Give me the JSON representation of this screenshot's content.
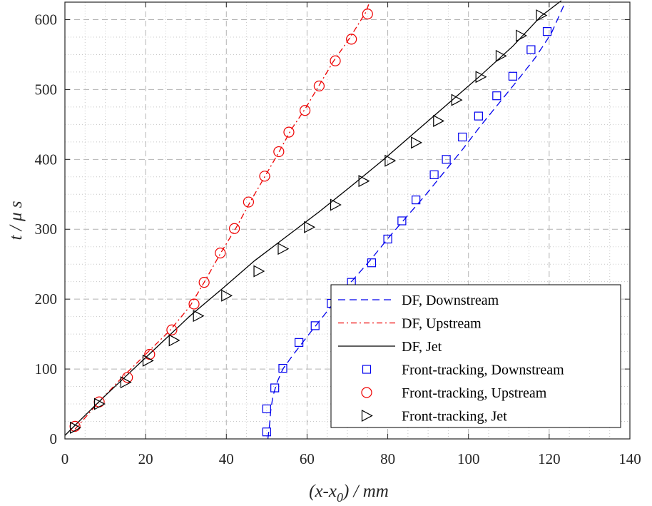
{
  "chart_data": {
    "type": "scatter",
    "xlabel": "(x-x0) / mm",
    "xlabel_main": "(x-x",
    "xlabel_sub": "0",
    "xlabel_tail": ") / mm",
    "ylabel": "t / μ s",
    "xlim": [
      0,
      140
    ],
    "ylim": [
      0,
      625
    ],
    "xticks": [
      0,
      20,
      40,
      60,
      80,
      100,
      120,
      140
    ],
    "yticks": [
      0,
      100,
      200,
      300,
      400,
      500,
      600
    ],
    "grid": true,
    "legend_position": "lower-right",
    "series": [
      {
        "name": "DF, Downstream",
        "kind": "line",
        "style": "dashed",
        "color": "#0000ee",
        "x": [
          50.3,
          50.5,
          50.7,
          51.0,
          51.5,
          52.5,
          54.0,
          56.5,
          60.5,
          66.0,
          71.0,
          76.0,
          80.5,
          85.0,
          89.5,
          94.0,
          98.5,
          103.0,
          107.5,
          112.0,
          116.5,
          120.5,
          124.0
        ],
        "y": [
          0,
          10,
          20,
          40,
          60,
          80,
          100,
          120,
          150,
          190,
          225,
          258,
          290,
          320,
          350,
          382,
          414,
          448,
          480,
          512,
          545,
          580,
          625
        ]
      },
      {
        "name": "DF, Upstream",
        "kind": "line",
        "style": "dashdot",
        "color": "#ee0000",
        "x": [
          2.5,
          8,
          14,
          20,
          26,
          31,
          34.5,
          38.5,
          42.5,
          46,
          49.5,
          53,
          56,
          59.5,
          63,
          66.5,
          70.5,
          74.5,
          75.5
        ],
        "y": [
          14,
          50,
          87,
          121,
          155,
          190,
          224,
          265,
          303,
          340,
          375,
          410,
          442,
          472,
          506,
          540,
          573,
          610,
          625
        ]
      },
      {
        "name": "DF, Jet",
        "kind": "line",
        "style": "solid",
        "color": "#000000",
        "x": [
          0,
          4,
          10,
          17,
          24,
          31,
          39,
          47,
          55,
          63,
          71,
          79,
          87,
          95,
          103,
          111,
          118,
          123
        ],
        "y": [
          5,
          28,
          62,
          100,
          138,
          176,
          215,
          255,
          290,
          325,
          362,
          400,
          440,
          480,
          520,
          562,
          605,
          627
        ]
      },
      {
        "name": "Front-tracking, Downstream",
        "kind": "marker",
        "marker": "square",
        "color": "#0000ee",
        "x": [
          50,
          50,
          52,
          54,
          58,
          62,
          66,
          71,
          76,
          80,
          83.5,
          87,
          91.5,
          94.5,
          98.5,
          102.5,
          107,
          111,
          115.5,
          119.5
        ],
        "y": [
          10,
          43,
          73,
          101,
          138,
          162,
          194,
          224,
          252,
          286,
          312,
          342,
          378,
          400,
          432,
          462,
          491,
          519,
          557,
          583
        ]
      },
      {
        "name": "Front-tracking, Upstream",
        "kind": "marker",
        "marker": "circle",
        "color": "#ee0000",
        "x": [
          2.5,
          8.5,
          15.5,
          21,
          26.5,
          32,
          34.5,
          38.5,
          42,
          45.5,
          49.5,
          53,
          55.5,
          59.5,
          63,
          67,
          71,
          75
        ],
        "y": [
          18,
          53,
          88,
          121,
          156,
          193,
          224,
          266,
          301,
          339,
          376,
          411,
          439,
          470,
          505,
          541,
          572,
          608
        ]
      },
      {
        "name": "Front-tracking, Jet",
        "kind": "marker",
        "marker": "triangle-right",
        "color": "#000000",
        "x": [
          2.5,
          8.5,
          15,
          20.5,
          27,
          33,
          40,
          48,
          54,
          60.5,
          67,
          74,
          80.5,
          87,
          92.5,
          97,
          103,
          108,
          113,
          118
        ],
        "y": [
          16,
          50,
          81,
          112,
          141,
          176,
          205,
          240,
          272,
          303,
          335,
          369,
          398,
          424,
          455,
          485,
          518,
          548,
          577,
          606
        ]
      }
    ]
  }
}
